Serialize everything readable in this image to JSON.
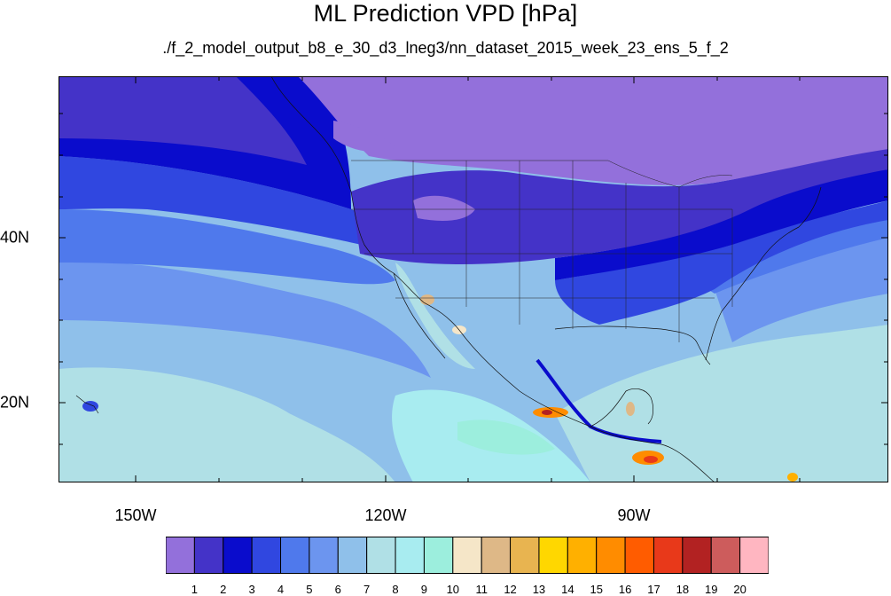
{
  "title": "ML Prediction VPD [hPa]",
  "subtitle": "./f_2_model_output_b8_e_30_d3_lneg3/nn_dataset_2015_week_23_ens_5_f_2",
  "axes": {
    "lon_labels": [
      "150W",
      "120W",
      "90W"
    ],
    "lat_labels": [
      "40N",
      "20N"
    ]
  },
  "colorbar": {
    "labels": [
      "1",
      "2",
      "3",
      "4",
      "5",
      "6",
      "7",
      "8",
      "9",
      "10",
      "11",
      "12",
      "13",
      "14",
      "15",
      "16",
      "17",
      "18",
      "19",
      "20"
    ],
    "colors": [
      "#9370db",
      "#4433c8",
      "#0a0ccc",
      "#3047e0",
      "#4f79ec",
      "#6c95ef",
      "#8fc0ea",
      "#b0e0e6",
      "#a8ecf0",
      "#9ceedd",
      "#f5e6c8",
      "#deb887",
      "#e8b450",
      "#ffd700",
      "#ffb000",
      "#ff8c00",
      "#ff5c00",
      "#e8391a",
      "#b22222",
      "#cd5c5c",
      "#ffb6c1"
    ]
  },
  "map": {
    "lon_range": [
      -159.5,
      -60
    ],
    "lat_range": [
      10.5,
      59.5
    ],
    "features": [
      "coastlines",
      "us-state-borders",
      "country-borders"
    ]
  }
}
